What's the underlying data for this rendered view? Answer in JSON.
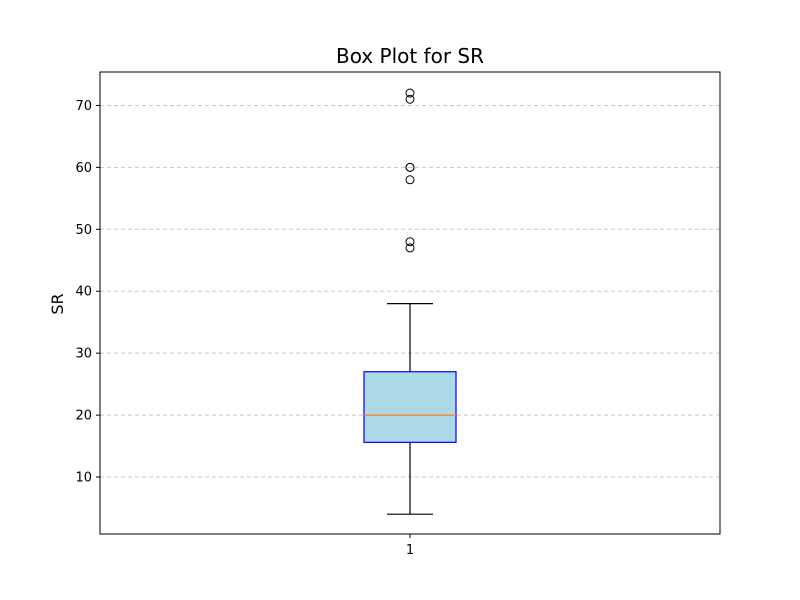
{
  "chart_data": {
    "type": "box",
    "title": "Box Plot for SR",
    "xlabel": "",
    "ylabel": "SR",
    "categories": [
      "1"
    ],
    "ylim": [
      0.8,
      75.4
    ],
    "yticks": [
      10,
      20,
      30,
      40,
      50,
      60,
      70
    ],
    "grid": "y-dashed",
    "box": {
      "whisker_low": 4,
      "q1": 15.6,
      "median": 20,
      "q3": 27,
      "whisker_high": 38
    },
    "outliers": [
      47,
      48,
      58,
      60,
      60,
      71,
      72
    ],
    "colors": {
      "box_fill": "#add8e6",
      "box_edge": "#0000ff",
      "median": "#ff7f0e",
      "whisker": "#000000",
      "grid": "#c8c8c8"
    }
  }
}
